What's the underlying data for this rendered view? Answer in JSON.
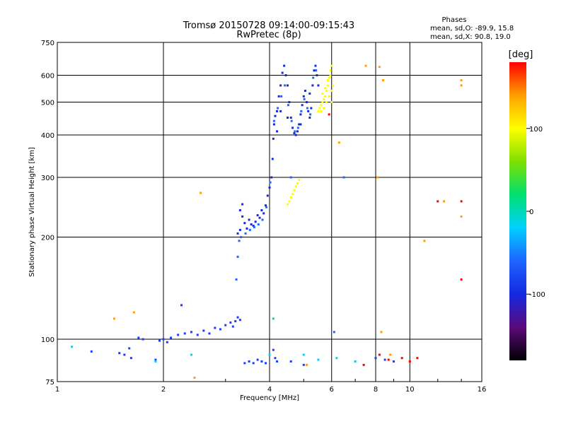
{
  "chart_data": {
    "type": "scatter",
    "title": "Tromsø 20150728 09:14:00-09:15:43",
    "subtitle": "RwPretec (8p)",
    "stats": {
      "header": "Phases",
      "line_o": "mean, sd,O: -89.9, 15.8",
      "line_x": "mean, sd,X:  90.8, 19.0"
    },
    "xlabel": "Frequency [MHz]",
    "ylabel": "Stationary phase Virtual Height [km]",
    "x_scale": "log",
    "y_scale": "log",
    "xlim": [
      1,
      16
    ],
    "ylim": [
      75,
      750
    ],
    "x_ticks": [
      {
        "value": 1,
        "label": "1"
      },
      {
        "value": 2,
        "label": "2"
      },
      {
        "value": 4,
        "label": "4"
      },
      {
        "value": 6,
        "label": "6"
      },
      {
        "value": 8,
        "label": "8"
      },
      {
        "value": 10,
        "label": "10"
      },
      {
        "value": 16,
        "label": "16"
      }
    ],
    "y_ticks": [
      {
        "value": 75,
        "label": "75"
      },
      {
        "value": 100,
        "label": "100"
      },
      {
        "value": 200,
        "label": "200"
      },
      {
        "value": 300,
        "label": "300"
      },
      {
        "value": 400,
        "label": "400"
      },
      {
        "value": 500,
        "label": "500"
      },
      {
        "value": 600,
        "label": "600"
      },
      {
        "value": 750,
        "label": "750"
      }
    ],
    "grid": true,
    "colorbar": {
      "title": "[deg]",
      "range": [
        -180,
        180
      ],
      "ticks": [
        {
          "value": 100,
          "label": "100"
        },
        {
          "value": 0,
          "label": "0"
        },
        {
          "value": -100,
          "label": "-100"
        }
      ],
      "colors": [
        "#000000",
        "#5a0a7a",
        "#1428e0",
        "#1e64ff",
        "#00d0ff",
        "#00e070",
        "#7de000",
        "#ffff00",
        "#ffa000",
        "#ff0000"
      ]
    },
    "series": [
      {
        "phase_deg": -100,
        "color": "#1e3cff",
        "points": [
          [
            1.25,
            92
          ],
          [
            1.5,
            91
          ],
          [
            1.55,
            90
          ],
          [
            1.6,
            94
          ],
          [
            1.62,
            88
          ],
          [
            1.7,
            101
          ],
          [
            1.75,
            100
          ],
          [
            1.9,
            87
          ],
          [
            1.95,
            99
          ],
          [
            2.0,
            100
          ],
          [
            2.05,
            98
          ],
          [
            2.1,
            101
          ],
          [
            2.2,
            103
          ],
          [
            2.3,
            104
          ],
          [
            2.4,
            105
          ],
          [
            2.5,
            103
          ],
          [
            2.6,
            106
          ],
          [
            2.7,
            104
          ],
          [
            2.8,
            108
          ],
          [
            2.9,
            107
          ],
          [
            3.0,
            110
          ],
          [
            3.1,
            112
          ],
          [
            3.15,
            109
          ],
          [
            3.2,
            113
          ],
          [
            3.25,
            116
          ],
          [
            3.3,
            114
          ],
          [
            2.25,
            126
          ],
          [
            3.4,
            85
          ],
          [
            3.5,
            86
          ],
          [
            3.6,
            85
          ],
          [
            3.7,
            87
          ],
          [
            3.8,
            86
          ],
          [
            3.9,
            85
          ],
          [
            4.1,
            93
          ],
          [
            4.15,
            88
          ],
          [
            4.2,
            86
          ],
          [
            4.6,
            86
          ],
          [
            5.0,
            84
          ],
          [
            8.0,
            88
          ],
          [
            8.5,
            87
          ],
          [
            9.0,
            86
          ]
        ]
      },
      {
        "phase_deg": -110,
        "color": "#1428e0",
        "points": [
          [
            3.25,
            205
          ],
          [
            3.3,
            210
          ],
          [
            3.35,
            230
          ],
          [
            3.4,
            220
          ],
          [
            3.45,
            212
          ],
          [
            3.5,
            225
          ],
          [
            3.55,
            218
          ],
          [
            3.6,
            216
          ],
          [
            3.65,
            222
          ],
          [
            3.7,
            232
          ],
          [
            3.75,
            228
          ],
          [
            3.8,
            240
          ],
          [
            3.85,
            235
          ],
          [
            3.9,
            248
          ],
          [
            3.95,
            265
          ],
          [
            4.0,
            280
          ],
          [
            4.05,
            300
          ],
          [
            4.08,
            340
          ],
          [
            4.1,
            390
          ],
          [
            4.12,
            430
          ],
          [
            4.15,
            455
          ],
          [
            4.2,
            470
          ],
          [
            4.25,
            520
          ],
          [
            4.3,
            560
          ],
          [
            4.35,
            610
          ],
          [
            4.4,
            640
          ],
          [
            4.45,
            600
          ],
          [
            4.5,
            560
          ],
          [
            4.55,
            500
          ],
          [
            4.6,
            450
          ],
          [
            4.65,
            420
          ],
          [
            4.7,
            405
          ],
          [
            4.75,
            400
          ],
          [
            4.8,
            410
          ],
          [
            4.85,
            430
          ],
          [
            4.9,
            460
          ],
          [
            4.95,
            490
          ],
          [
            5.0,
            520
          ],
          [
            5.05,
            540
          ],
          [
            5.1,
            500
          ],
          [
            5.15,
            470
          ],
          [
            5.2,
            450
          ],
          [
            5.25,
            480
          ],
          [
            5.3,
            560
          ],
          [
            5.35,
            620
          ],
          [
            5.4,
            640
          ],
          [
            5.45,
            600
          ],
          [
            5.5,
            560
          ],
          [
            4.2,
            410
          ],
          [
            4.3,
            470
          ],
          [
            4.5,
            450
          ],
          [
            4.9,
            430
          ],
          [
            5.2,
            530
          ],
          [
            3.35,
            250
          ],
          [
            3.3,
            240
          ]
        ]
      },
      {
        "phase_deg": -90,
        "color": "#1e64ff",
        "points": [
          [
            3.22,
            150
          ],
          [
            3.25,
            175
          ],
          [
            3.28,
            195
          ],
          [
            3.32,
            200
          ],
          [
            3.42,
            205
          ],
          [
            3.52,
            210
          ],
          [
            3.62,
            214
          ],
          [
            3.72,
            218
          ],
          [
            3.82,
            225
          ],
          [
            3.92,
            245
          ],
          [
            4.02,
            290
          ],
          [
            4.12,
            440
          ],
          [
            4.22,
            480
          ],
          [
            4.32,
            520
          ],
          [
            4.42,
            560
          ],
          [
            4.52,
            490
          ],
          [
            4.62,
            440
          ],
          [
            4.72,
            410
          ],
          [
            4.82,
            420
          ],
          [
            4.92,
            470
          ],
          [
            5.02,
            510
          ],
          [
            5.12,
            480
          ],
          [
            5.22,
            460
          ],
          [
            5.32,
            590
          ],
          [
            5.42,
            620
          ],
          [
            6.1,
            105
          ],
          [
            6.5,
            300
          ],
          [
            4.6,
            300
          ]
        ]
      },
      {
        "phase_deg": -30,
        "color": "#00d0ff",
        "points": [
          [
            1.1,
            95
          ],
          [
            1.9,
            86
          ],
          [
            2.4,
            90
          ],
          [
            4.0,
            90
          ],
          [
            5.0,
            90
          ],
          [
            5.5,
            87
          ],
          [
            6.2,
            88
          ],
          [
            7.0,
            86
          ]
        ]
      },
      {
        "phase_deg": 10,
        "color": "#00e070",
        "points": [
          [
            4.1,
            115
          ]
        ]
      },
      {
        "phase_deg": 90,
        "color": "#ffff00",
        "points": [
          [
            4.5,
            250
          ],
          [
            4.55,
            255
          ],
          [
            4.6,
            262
          ],
          [
            4.65,
            268
          ],
          [
            4.7,
            275
          ],
          [
            4.75,
            282
          ],
          [
            4.8,
            288
          ],
          [
            4.85,
            295
          ],
          [
            5.5,
            470
          ],
          [
            5.55,
            480
          ],
          [
            5.6,
            490
          ],
          [
            5.65,
            500
          ],
          [
            5.7,
            510
          ],
          [
            5.75,
            520
          ],
          [
            5.8,
            540
          ],
          [
            5.85,
            560
          ],
          [
            5.9,
            590
          ],
          [
            5.95,
            620
          ],
          [
            6.0,
            640
          ],
          [
            5.6,
            470
          ],
          [
            5.7,
            480
          ],
          [
            5.8,
            500
          ],
          [
            5.9,
            520
          ],
          [
            6.0,
            540
          ],
          [
            6.05,
            560
          ],
          [
            5.65,
            530
          ],
          [
            5.75,
            550
          ],
          [
            5.85,
            580
          ],
          [
            5.95,
            600
          ],
          [
            6.0,
            500
          ]
        ]
      },
      {
        "phase_deg": 140,
        "color": "#ffa000",
        "points": [
          [
            1.45,
            115
          ],
          [
            1.65,
            120
          ],
          [
            2.45,
            77
          ],
          [
            2.55,
            270
          ],
          [
            5.1,
            84
          ],
          [
            6.3,
            380
          ],
          [
            7.5,
            640
          ],
          [
            8.1,
            300
          ],
          [
            8.3,
            105
          ],
          [
            8.2,
            635
          ],
          [
            8.4,
            580
          ],
          [
            14.0,
            230
          ],
          [
            14.0,
            560
          ],
          [
            14.0,
            580
          ],
          [
            12.5,
            255
          ],
          [
            11.0,
            195
          ],
          [
            8.8,
            90
          ]
        ]
      },
      {
        "phase_deg": 170,
        "color": "#ff0000",
        "points": [
          [
            7.4,
            84
          ],
          [
            8.2,
            90
          ],
          [
            8.7,
            87
          ],
          [
            9.5,
            88
          ],
          [
            10.0,
            86
          ],
          [
            12.0,
            255
          ],
          [
            14.0,
            255
          ],
          [
            14.0,
            150
          ],
          [
            5.9,
            460
          ],
          [
            10.5,
            88
          ]
        ]
      }
    ]
  }
}
